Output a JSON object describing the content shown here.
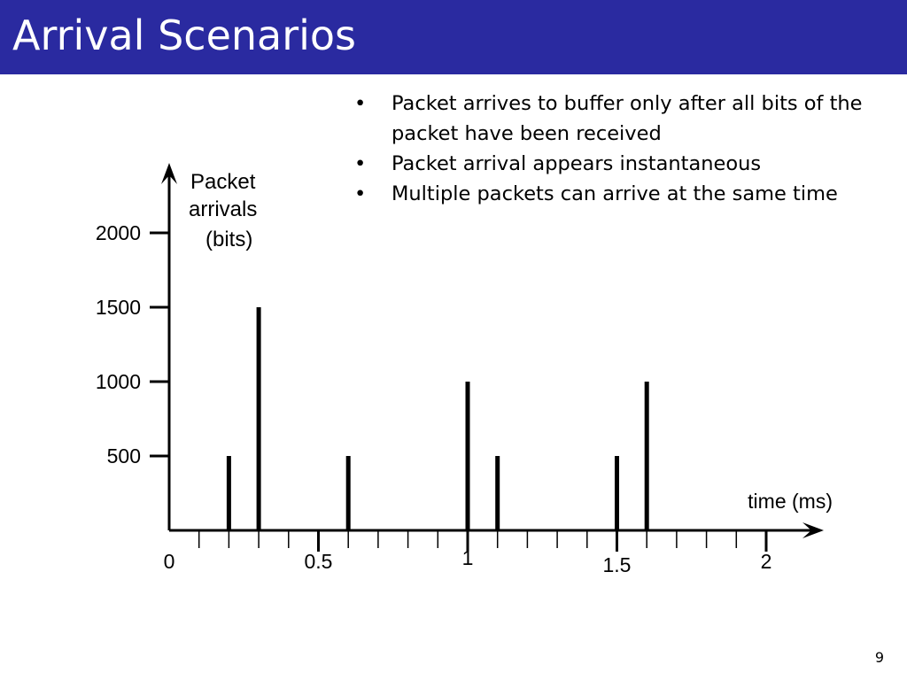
{
  "slide": {
    "title": "Arrival Scenarios",
    "page_number": "9",
    "bullets": [
      "Packet arrives to buffer only after all bits of the packet have been received",
      "Packet arrival appears instantaneous",
      "Multiple packets can arrive at the same time"
    ],
    "bullet_glyph": "•",
    "colors": {
      "title_bar": "#2a2aa0",
      "title_text": "#ffffff",
      "marks": "#000000"
    }
  },
  "chart_data": {
    "type": "bar",
    "ylabel": "Packet arrivals (bits)",
    "ylabel_lines": [
      "Packet",
      "arrivals",
      "(bits)"
    ],
    "xlabel": "time (ms)",
    "xlim": [
      0,
      2
    ],
    "ylim": [
      0,
      2000
    ],
    "yticks": [
      500,
      1000,
      1500,
      2000
    ],
    "ytick_labels": [
      "500",
      "1000",
      "1500",
      "2000"
    ],
    "xticks_major": [
      0,
      0.5,
      1,
      1.5,
      2
    ],
    "xtick_labels": [
      "0",
      "0.5",
      "1",
      "1.5",
      "2"
    ],
    "x_minor_step": 0.1,
    "grid": false,
    "x": [
      0.2,
      0.3,
      0.6,
      1.0,
      1.1,
      1.5,
      1.6
    ],
    "values": [
      500,
      1500,
      500,
      1000,
      500,
      500,
      1000
    ]
  }
}
